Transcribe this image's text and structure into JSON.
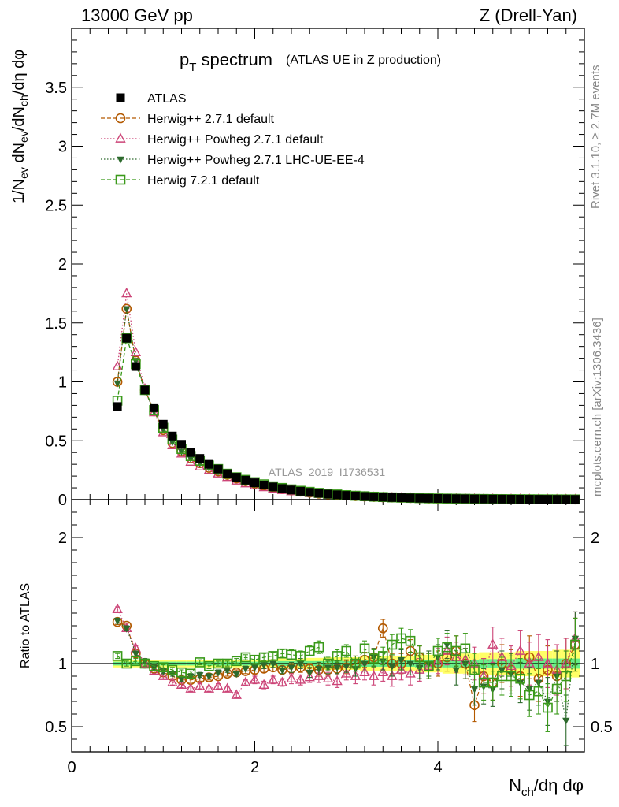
{
  "header": {
    "left": "13000 GeV pp",
    "right": "Z (Drell-Yan)"
  },
  "title": {
    "main": "p",
    "main_sub": "T",
    "main_rest": " spectrum",
    "detail": "(ATLAS UE in Z production)"
  },
  "watermark": "ATLAS_2019_I1736531",
  "side": {
    "rivet": "Rivet 3.1.10, ≥ 2.7M events",
    "mcplots": "mcplots.cern.ch [arXiv:1306.3436]"
  },
  "axes": {
    "ylabel_top": "1/N_ev dN_ev/dN_ch/dη dφ",
    "ylabel_bottom": "Ratio to ATLAS",
    "xlabel": "N_ch/dη dφ"
  },
  "colors": {
    "atlas": "#000000",
    "herwig_pp": "#b35900",
    "powheg": "#cc4477",
    "powheg_ue": "#2d6a2d",
    "herwig7": "#3a9a1a",
    "band_yellow": "#ffff66",
    "band_green": "#66ee88"
  },
  "chart_data": [
    {
      "type": "scatter",
      "panel": "main",
      "xlim": [
        0,
        5.6
      ],
      "ylim": [
        0,
        4.0
      ],
      "x_ticks": [
        0,
        2,
        4
      ],
      "y_ticks": [
        0,
        0.5,
        1,
        1.5,
        2,
        2.5,
        3,
        3.5
      ],
      "y_tick_labels": [
        "0",
        "0.5",
        "1",
        "1.5",
        "2",
        "2.5",
        "3",
        "3.5"
      ],
      "legend_position": "top-left",
      "x": [
        0.5,
        0.6,
        0.7,
        0.8,
        0.9,
        1.0,
        1.1,
        1.2,
        1.3,
        1.4,
        1.5,
        1.6,
        1.7,
        1.8,
        1.9,
        2.0,
        2.1,
        2.2,
        2.3,
        2.4,
        2.5,
        2.6,
        2.7,
        2.8,
        2.9,
        3.0,
        3.1,
        3.2,
        3.3,
        3.4,
        3.5,
        3.6,
        3.7,
        3.8,
        3.9,
        4.0,
        4.1,
        4.2,
        4.3,
        4.4,
        4.5,
        4.6,
        4.7,
        4.8,
        4.9,
        5.0,
        5.1,
        5.2,
        5.3,
        5.4,
        5.5
      ],
      "series": [
        {
          "name": "ATLAS",
          "marker": "filled-square",
          "values": [
            0.79,
            1.37,
            1.13,
            0.93,
            0.78,
            0.64,
            0.54,
            0.47,
            0.4,
            0.35,
            0.3,
            0.26,
            0.22,
            0.19,
            0.165,
            0.143,
            0.124,
            0.108,
            0.094,
            0.082,
            0.071,
            0.062,
            0.054,
            0.047,
            0.041,
            0.036,
            0.031,
            0.027,
            0.024,
            0.021,
            0.018,
            0.016,
            0.014,
            0.012,
            0.011,
            0.01,
            0.009,
            0.008,
            0.007,
            0.006,
            0.0055,
            0.005,
            0.0045,
            0.004,
            0.0035,
            0.003,
            0.0027,
            0.0024,
            0.0021,
            0.0019,
            0.0017
          ]
        },
        {
          "name": "Herwig++ 2.7.1 default",
          "marker": "open-circle",
          "dash": "dashed",
          "values": [
            1.0,
            1.62,
            1.18,
            0.93,
            0.75,
            0.59,
            0.48,
            0.41,
            0.35,
            0.31,
            0.27,
            0.24,
            0.21,
            0.18,
            0.157,
            0.136,
            0.118,
            0.103,
            0.089,
            0.078,
            0.068,
            0.059,
            0.051,
            0.045,
            0.04,
            0.035,
            0.03,
            0.026,
            0.023,
            0.02,
            0.018,
            0.016,
            0.014,
            0.012,
            0.01,
            0.009,
            0.008,
            0.007,
            0.006,
            0.005,
            0.0048,
            0.0043,
            0.004,
            0.0036,
            0.0032,
            0.0029,
            0.0025,
            0.0022,
            0.0019,
            0.0017,
            0.0015
          ]
        },
        {
          "name": "Herwig++ Powheg 2.7.1 default",
          "marker": "open-triangle",
          "dash": "dotted",
          "values": [
            1.13,
            1.75,
            1.25,
            0.94,
            0.74,
            0.57,
            0.46,
            0.39,
            0.32,
            0.28,
            0.25,
            0.22,
            0.19,
            0.16,
            0.137,
            0.12,
            0.104,
            0.091,
            0.08,
            0.07,
            0.062,
            0.054,
            0.047,
            0.041,
            0.036,
            0.032,
            0.028,
            0.024,
            0.021,
            0.019,
            0.017,
            0.015,
            0.013,
            0.011,
            0.01,
            0.009,
            0.008,
            0.007,
            0.006,
            0.005,
            0.0046,
            0.0042,
            0.0038,
            0.0034,
            0.003,
            0.0027,
            0.0024,
            0.0021,
            0.0018,
            0.0016,
            0.0014
          ]
        },
        {
          "name": "Herwig++ Powheg 2.7.1 LHC-UE-EE-4",
          "marker": "filled-triangle-down",
          "dash": "dotted",
          "values": [
            0.99,
            1.62,
            1.18,
            0.93,
            0.75,
            0.6,
            0.49,
            0.41,
            0.35,
            0.31,
            0.27,
            0.24,
            0.21,
            0.18,
            0.155,
            0.135,
            0.117,
            0.103,
            0.09,
            0.079,
            0.069,
            0.06,
            0.052,
            0.046,
            0.04,
            0.035,
            0.031,
            0.027,
            0.024,
            0.021,
            0.018,
            0.016,
            0.014,
            0.012,
            0.011,
            0.01,
            0.009,
            0.008,
            0.007,
            0.006,
            0.005,
            0.0045,
            0.004,
            0.0037,
            0.0033,
            0.0029,
            0.0026,
            0.0023,
            0.002,
            0.0018,
            0.0016
          ]
        },
        {
          "name": "Herwig 7.2.1 default",
          "marker": "open-square",
          "dash": "dashed",
          "values": [
            0.84,
            1.37,
            1.15,
            0.93,
            0.76,
            0.61,
            0.51,
            0.43,
            0.37,
            0.33,
            0.29,
            0.26,
            0.22,
            0.19,
            0.168,
            0.148,
            0.13,
            0.113,
            0.099,
            0.087,
            0.075,
            0.066,
            0.057,
            0.05,
            0.044,
            0.038,
            0.033,
            0.029,
            0.025,
            0.022,
            0.019,
            0.017,
            0.015,
            0.013,
            0.011,
            0.01,
            0.009,
            0.008,
            0.007,
            0.006,
            0.0055,
            0.0049,
            0.0044,
            0.004,
            0.0035,
            0.0031,
            0.0028,
            0.0025,
            0.0022,
            0.002,
            0.0018
          ]
        }
      ]
    },
    {
      "type": "scatter",
      "panel": "ratio",
      "xlim": [
        0,
        5.6
      ],
      "ylim": [
        0.3,
        2.3
      ],
      "x_ticks": [
        0,
        2,
        4
      ],
      "x_tick_labels": [
        "0",
        "2",
        "4"
      ],
      "y_ticks": [
        0.5,
        1,
        2
      ],
      "y_tick_labels": [
        "0.5",
        "1",
        "2"
      ],
      "reference_line": 1,
      "x": [
        0.5,
        0.6,
        0.7,
        0.8,
        0.9,
        1.0,
        1.1,
        1.2,
        1.3,
        1.4,
        1.5,
        1.6,
        1.7,
        1.8,
        1.9,
        2.0,
        2.1,
        2.2,
        2.3,
        2.4,
        2.5,
        2.6,
        2.7,
        2.8,
        2.9,
        3.0,
        3.1,
        3.2,
        3.3,
        3.4,
        3.5,
        3.6,
        3.7,
        3.8,
        3.9,
        4.0,
        4.1,
        4.2,
        4.3,
        4.4,
        4.5,
        4.6,
        4.7,
        4.8,
        4.9,
        5.0,
        5.1,
        5.2,
        5.3,
        5.4,
        5.5
      ],
      "band_yellow_halfwidth": [
        0.03,
        0.03,
        0.03,
        0.03,
        0.03,
        0.03,
        0.03,
        0.03,
        0.03,
        0.03,
        0.03,
        0.03,
        0.03,
        0.03,
        0.03,
        0.03,
        0.03,
        0.035,
        0.04,
        0.04,
        0.04,
        0.045,
        0.045,
        0.05,
        0.05,
        0.05,
        0.05,
        0.06,
        0.06,
        0.06,
        0.06,
        0.06,
        0.06,
        0.07,
        0.07,
        0.07,
        0.08,
        0.08,
        0.08,
        0.08,
        0.09,
        0.09,
        0.09,
        0.09,
        0.1,
        0.1,
        0.1,
        0.1,
        0.11,
        0.11,
        0.11
      ],
      "band_green_halfwidth": [
        0.015,
        0.015,
        0.015,
        0.015,
        0.015,
        0.015,
        0.015,
        0.015,
        0.015,
        0.015,
        0.015,
        0.015,
        0.015,
        0.015,
        0.015,
        0.015,
        0.015,
        0.015,
        0.02,
        0.02,
        0.02,
        0.02,
        0.02,
        0.02,
        0.02,
        0.02,
        0.02,
        0.025,
        0.025,
        0.025,
        0.025,
        0.025,
        0.025,
        0.03,
        0.03,
        0.03,
        0.03,
        0.03,
        0.03,
        0.03,
        0.035,
        0.035,
        0.035,
        0.035,
        0.04,
        0.04,
        0.04,
        0.04,
        0.04,
        0.04,
        0.04
      ],
      "series": [
        {
          "name": "Herwig++ 2.7.1 default",
          "values": [
            1.33,
            1.3,
            1.08,
            1.0,
            0.96,
            0.93,
            0.9,
            0.87,
            0.87,
            0.88,
            0.89,
            0.9,
            0.92,
            0.93,
            0.94,
            0.95,
            0.96,
            0.97,
            0.95,
            0.96,
            0.97,
            0.96,
            0.95,
            0.95,
            0.96,
            0.97,
            1.0,
            1.03,
            1.05,
            1.28,
            1.0,
            1.0,
            1.1,
            1.05,
            0.98,
            1.0,
            1.05,
            1.1,
            1.0,
            0.67,
            0.9,
            0.85,
            1.0,
            0.95,
            0.9,
            1.05,
            0.88,
            0.95,
            0.9,
            1.0,
            1.15
          ],
          "errors": [
            0.02,
            0.02,
            0.02,
            0.02,
            0.02,
            0.02,
            0.02,
            0.02,
            0.02,
            0.02,
            0.02,
            0.02,
            0.02,
            0.02,
            0.02,
            0.03,
            0.03,
            0.03,
            0.03,
            0.04,
            0.04,
            0.04,
            0.05,
            0.05,
            0.05,
            0.05,
            0.06,
            0.06,
            0.07,
            0.07,
            0.08,
            0.08,
            0.09,
            0.09,
            0.1,
            0.1,
            0.11,
            0.12,
            0.12,
            0.13,
            0.14,
            0.14,
            0.15,
            0.16,
            0.16,
            0.17,
            0.18,
            0.19,
            0.2,
            0.2,
            0.21
          ]
        },
        {
          "name": "Herwig++ Powheg 2.7.1 default",
          "values": [
            1.43,
            1.28,
            1.12,
            1.0,
            0.94,
            0.9,
            0.85,
            0.83,
            0.8,
            0.82,
            0.8,
            0.82,
            0.8,
            0.75,
            0.85,
            0.87,
            0.83,
            0.87,
            0.85,
            0.88,
            0.87,
            0.89,
            0.9,
            0.88,
            0.86,
            0.92,
            0.9,
            0.93,
            0.9,
            0.93,
            0.9,
            0.95,
            0.92,
            0.95,
            0.98,
            1.02,
            1.1,
            1.05,
            1.03,
            1.0,
            0.9,
            1.15,
            1.05,
            0.98,
            1.1,
            1.0,
            1.05,
            1.0,
            0.95,
            1.0,
            1.2
          ],
          "errors": [
            0.02,
            0.02,
            0.02,
            0.02,
            0.02,
            0.02,
            0.02,
            0.02,
            0.02,
            0.02,
            0.02,
            0.02,
            0.02,
            0.02,
            0.02,
            0.03,
            0.03,
            0.03,
            0.03,
            0.04,
            0.04,
            0.04,
            0.05,
            0.05,
            0.05,
            0.05,
            0.06,
            0.06,
            0.07,
            0.07,
            0.08,
            0.08,
            0.09,
            0.09,
            0.1,
            0.1,
            0.11,
            0.12,
            0.12,
            0.13,
            0.14,
            0.14,
            0.15,
            0.16,
            0.16,
            0.17,
            0.18,
            0.19,
            0.2,
            0.2,
            0.21
          ]
        },
        {
          "name": "Herwig++ Powheg 2.7.1 LHC-UE-EE-4",
          "values": [
            1.34,
            1.28,
            1.08,
            1.02,
            0.97,
            0.94,
            0.92,
            0.88,
            0.9,
            0.91,
            0.9,
            0.93,
            0.95,
            0.92,
            0.96,
            0.97,
            0.99,
            1.0,
            0.95,
            0.97,
            1.0,
            0.93,
            0.96,
            0.97,
            0.97,
            0.98,
            0.96,
            1.0,
            1.05,
            1.02,
            0.98,
            1.03,
            1.0,
            0.97,
            1.0,
            1.05,
            1.15,
            0.95,
            1.0,
            0.8,
            0.82,
            0.8,
            0.95,
            0.92,
            0.85,
            0.8,
            0.85,
            0.7,
            0.9,
            0.55,
            1.2
          ],
          "errors": [
            0.02,
            0.02,
            0.02,
            0.02,
            0.02,
            0.02,
            0.02,
            0.02,
            0.02,
            0.02,
            0.02,
            0.02,
            0.02,
            0.02,
            0.02,
            0.03,
            0.03,
            0.03,
            0.03,
            0.04,
            0.04,
            0.04,
            0.05,
            0.05,
            0.05,
            0.05,
            0.06,
            0.06,
            0.07,
            0.07,
            0.08,
            0.08,
            0.09,
            0.09,
            0.1,
            0.1,
            0.11,
            0.12,
            0.12,
            0.13,
            0.14,
            0.14,
            0.15,
            0.16,
            0.16,
            0.17,
            0.18,
            0.19,
            0.2,
            0.2,
            0.21
          ]
        },
        {
          "name": "Herwig 7.2.1 default",
          "values": [
            1.06,
            1.0,
            1.02,
            1.0,
            0.98,
            0.97,
            0.95,
            0.93,
            0.92,
            1.01,
            0.98,
            1.0,
            1.0,
            1.02,
            1.05,
            1.03,
            1.05,
            1.06,
            1.08,
            1.07,
            1.06,
            1.1,
            1.13,
            1.0,
            1.06,
            1.1,
            1.0,
            1.12,
            1.04,
            1.06,
            1.15,
            1.2,
            1.18,
            1.05,
            0.98,
            1.1,
            1.13,
            1.1,
            1.12,
            0.95,
            0.85,
            0.85,
            0.9,
            0.9,
            0.88,
            0.75,
            0.78,
            0.65,
            0.8,
            0.9,
            1.15
          ],
          "errors": [
            0.02,
            0.02,
            0.02,
            0.02,
            0.02,
            0.02,
            0.02,
            0.02,
            0.02,
            0.02,
            0.02,
            0.02,
            0.02,
            0.02,
            0.02,
            0.03,
            0.03,
            0.03,
            0.03,
            0.04,
            0.04,
            0.04,
            0.05,
            0.05,
            0.05,
            0.05,
            0.06,
            0.06,
            0.07,
            0.07,
            0.08,
            0.08,
            0.09,
            0.09,
            0.1,
            0.1,
            0.11,
            0.12,
            0.12,
            0.13,
            0.14,
            0.14,
            0.15,
            0.16,
            0.16,
            0.17,
            0.18,
            0.19,
            0.2,
            0.2,
            0.21
          ]
        }
      ]
    }
  ]
}
